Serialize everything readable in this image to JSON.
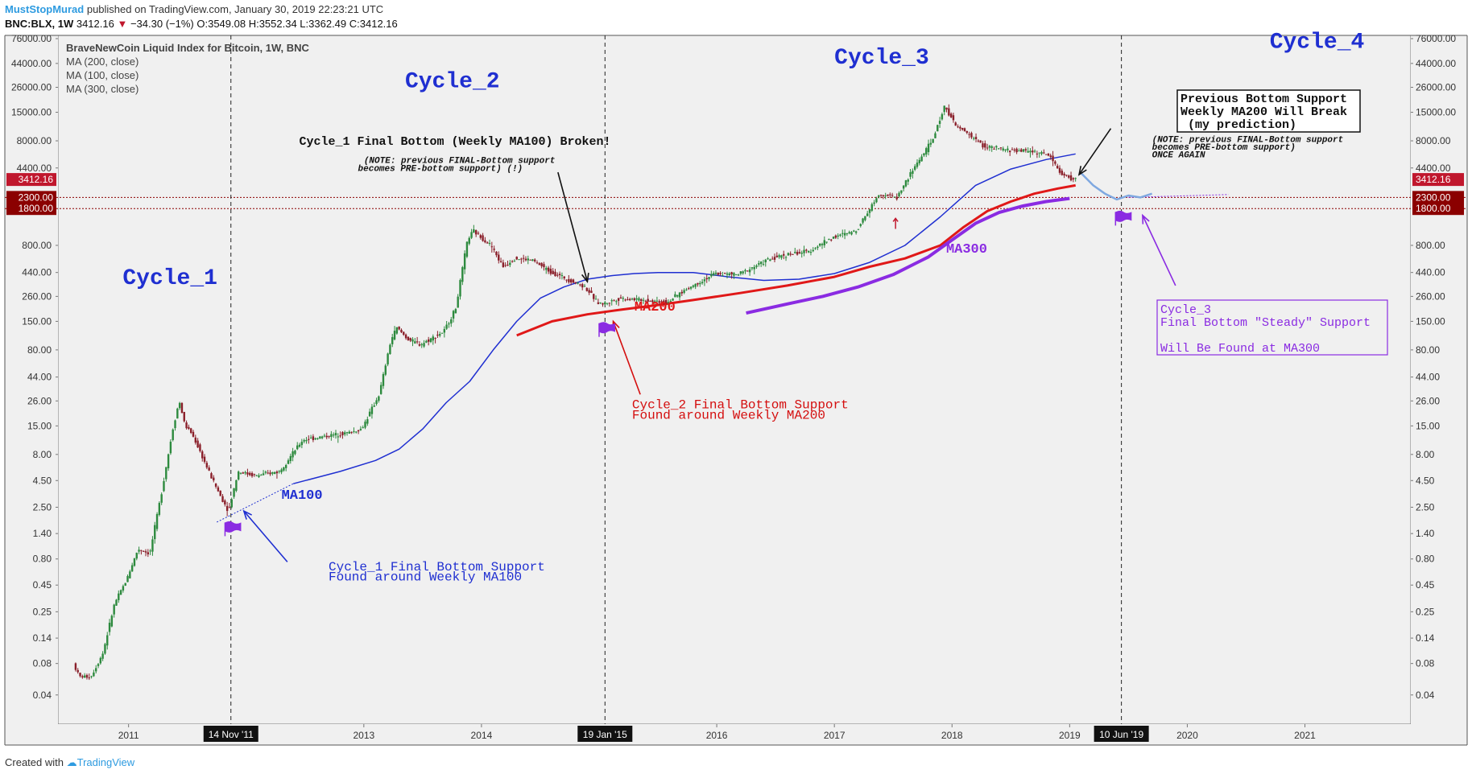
{
  "header": {
    "author": "MustStopMurad",
    "published": "published on TradingView.com, January 30, 2019 22:23:21 UTC",
    "symbol": "BNC:BLX, 1W",
    "last": "3412.16",
    "change": "−34.30 (−1%)",
    "ohlc": "O:3549.08 H:3552.34 L:3362.49 C:3412.16"
  },
  "footer": {
    "created_with": "Created with",
    "brand": "TradingView"
  },
  "colors": {
    "background": "#f0f0f0",
    "candle_up": "#2d8a3e",
    "candle_down": "#8a1f2a",
    "ma100": "#1f2fd1",
    "ma200": "#e01818",
    "ma300": "#8a2be2",
    "projection": "#7fa8e0",
    "cycle_label": "#1f2fd1",
    "red_annotation": "#d40e0e",
    "purple_annotation": "#8a2be2",
    "price_tag": "#c0172d",
    "support_tag": "#8b0000"
  },
  "chart_data": {
    "type": "line",
    "title": "BraveNewCoin Liquid Index for Bitcoin, 1W, BNC",
    "legend": [
      "MA (200, close)",
      "MA (100, close)",
      "MA (300, close)"
    ],
    "y_scale": "log",
    "ylim": [
      0.03,
      76000
    ],
    "xlim": [
      2010.4,
      2021.9
    ],
    "x_ticks": [
      "2011",
      "2013",
      "2014",
      "2016",
      "2017",
      "2018",
      "2019",
      "2020",
      "2021"
    ],
    "x_tick_values": [
      2011,
      2013,
      2014,
      2016,
      2017,
      2018,
      2019,
      2020,
      2021
    ],
    "y_ticks": [
      "76000.00",
      "44000.00",
      "26000.00",
      "15000.00",
      "8000.00",
      "4400.00",
      "2300.00",
      "1800.00",
      "800.00",
      "440.00",
      "260.00",
      "150.00",
      "80.00",
      "44.00",
      "26.00",
      "15.00",
      "8.00",
      "4.50",
      "2.50",
      "1.40",
      "0.80",
      "0.45",
      "0.25",
      "0.14",
      "0.08",
      "0.04"
    ],
    "y_tick_values": [
      76000,
      44000,
      26000,
      15000,
      8000,
      4400,
      2300,
      1800,
      800,
      440,
      260,
      150,
      80,
      44,
      26,
      15,
      8,
      4.5,
      2.5,
      1.4,
      0.8,
      0.45,
      0.25,
      0.14,
      0.08,
      0.04
    ],
    "price_tags": [
      {
        "label": "3412.16",
        "value": 3412.16,
        "kind": "last"
      },
      {
        "label": "2300.00",
        "value": 2300,
        "kind": "support"
      },
      {
        "label": "1800.00",
        "value": 1800,
        "kind": "support"
      }
    ],
    "vlines": [
      {
        "x": 2011.87,
        "label": "14 Nov '11"
      },
      {
        "x": 2015.05,
        "label": "19 Jan '15"
      },
      {
        "x": 2019.44,
        "label": "10 Jun '19"
      }
    ],
    "price_series": {
      "name": "BLX",
      "x": [
        2010.55,
        2010.6,
        2010.7,
        2010.8,
        2010.9,
        2011.0,
        2011.1,
        2011.2,
        2011.3,
        2011.4,
        2011.45,
        2011.5,
        2011.55,
        2011.6,
        2011.7,
        2011.8,
        2011.87,
        2011.95,
        2012.1,
        2012.3,
        2012.5,
        2012.7,
        2012.9,
        2013.0,
        2013.15,
        2013.25,
        2013.3,
        2013.4,
        2013.5,
        2013.7,
        2013.8,
        2013.9,
        2013.95,
        2014.1,
        2014.2,
        2014.3,
        2014.45,
        2014.6,
        2014.75,
        2014.9,
        2015.0,
        2015.05,
        2015.2,
        2015.4,
        2015.6,
        2015.75,
        2015.9,
        2016.0,
        2016.2,
        2016.45,
        2016.6,
        2016.8,
        2017.0,
        2017.2,
        2017.4,
        2017.55,
        2017.7,
        2017.85,
        2017.96,
        2018.05,
        2018.15,
        2018.3,
        2018.5,
        2018.7,
        2018.85,
        2018.95,
        2019.05
      ],
      "values": [
        0.08,
        0.06,
        0.06,
        0.1,
        0.3,
        0.5,
        1.0,
        0.9,
        3.5,
        15,
        26,
        15,
        13,
        10,
        5.5,
        3.2,
        2.3,
        5.5,
        5,
        5.5,
        11,
        12,
        13,
        14,
        30,
        100,
        130,
        100,
        90,
        120,
        200,
        900,
        1100,
        800,
        500,
        600,
        580,
        450,
        380,
        320,
        230,
        220,
        250,
        240,
        230,
        300,
        370,
        430,
        420,
        580,
        650,
        700,
        950,
        1100,
        2500,
        2300,
        4500,
        8000,
        17500,
        11000,
        9500,
        7000,
        6500,
        6400,
        5800,
        3800,
        3412
      ]
    },
    "series": [
      {
        "name": "MA (100, close)",
        "x": [
          2012.4,
          2012.8,
          2013.1,
          2013.3,
          2013.5,
          2013.7,
          2013.9,
          2014.1,
          2014.3,
          2014.5,
          2014.7,
          2014.9,
          2015.1,
          2015.3,
          2015.5,
          2015.8,
          2016.1,
          2016.4,
          2016.7,
          2017.0,
          2017.3,
          2017.6,
          2017.9,
          2018.2,
          2018.5,
          2018.8,
          2019.05
        ],
        "values": [
          4.2,
          5.5,
          7,
          9,
          14,
          25,
          40,
          80,
          150,
          250,
          320,
          380,
          410,
          430,
          440,
          440,
          400,
          370,
          380,
          430,
          550,
          800,
          1500,
          3000,
          4300,
          5300,
          6000
        ]
      },
      {
        "name": "MA (200, close)",
        "x": [
          2014.3,
          2014.6,
          2014.9,
          2015.2,
          2015.5,
          2015.8,
          2016.2,
          2016.6,
          2017.0,
          2017.3,
          2017.6,
          2017.9,
          2018.1,
          2018.3,
          2018.5,
          2018.7,
          2018.9,
          2019.05
        ],
        "values": [
          110,
          150,
          175,
          195,
          215,
          240,
          280,
          330,
          400,
          500,
          600,
          800,
          1200,
          1700,
          2100,
          2500,
          2800,
          3000
        ]
      },
      {
        "name": "MA (300, close)",
        "x": [
          2016.25,
          2016.6,
          2016.9,
          2017.2,
          2017.5,
          2017.8,
          2018.0,
          2018.2,
          2018.4,
          2018.6,
          2018.8,
          2019.0
        ],
        "values": [
          180,
          220,
          260,
          320,
          420,
          620,
          900,
          1300,
          1650,
          1900,
          2100,
          2250
        ]
      },
      {
        "name": "Projection",
        "x": [
          2019.1,
          2019.2,
          2019.3,
          2019.4,
          2019.5,
          2019.6,
          2019.7
        ],
        "values": [
          3900,
          3000,
          2500,
          2200,
          2400,
          2300,
          2500
        ]
      }
    ],
    "annotations": [
      {
        "text": "Cycle_1",
        "x": 2010.95,
        "y": 340,
        "style": "cycle"
      },
      {
        "text": "Cycle_2",
        "x": 2013.35,
        "y": 26000,
        "style": "cycle"
      },
      {
        "text": "Cycle_3",
        "x": 2017.0,
        "y": 44000,
        "style": "cycle"
      },
      {
        "text": "Cycle_4",
        "x": 2020.7,
        "y": 62000,
        "style": "cycle"
      },
      {
        "text": "MA100",
        "x": 2012.3,
        "y": 3.0,
        "style": "ma100"
      },
      {
        "text": "MA200",
        "x": 2015.3,
        "y": 190,
        "style": "ma200"
      },
      {
        "text": "MA300",
        "x": 2017.95,
        "y": 680,
        "style": "ma300"
      },
      {
        "text": "Cycle_1 Final Bottom (Weekly MA100) Broken!",
        "x": 2012.45,
        "y": 7300,
        "style": "black"
      },
      {
        "text": "(NOTE: previous FINAL-Bottom support",
        "x": 2013.0,
        "y": 4900,
        "style": "note"
      },
      {
        "text": "becomes PRE-bottom support) (!)",
        "x": 2012.95,
        "y": 4100,
        "style": "note"
      },
      {
        "text": "Cycle_2 Final Bottom Support",
        "x": 2015.28,
        "y": 22,
        "style": "red"
      },
      {
        "text": "Found around Weekly MA200",
        "x": 2015.28,
        "y": 17.5,
        "style": "red"
      },
      {
        "text": "Cycle_1 Final Bottom Support",
        "x": 2012.7,
        "y": 0.62,
        "style": "blue"
      },
      {
        "text": "Found around Weekly MA100",
        "x": 2012.7,
        "y": 0.5,
        "style": "blue"
      },
      {
        "text": "(NOTE: previous FINAL-Bottom support",
        "x": 2019.7,
        "y": 7800,
        "style": "note"
      },
      {
        "text": "becomes PRE-bottom support)",
        "x": 2019.7,
        "y": 6600,
        "style": "note"
      },
      {
        "text": "ONCE AGAIN",
        "x": 2019.7,
        "y": 5550,
        "style": "note"
      }
    ],
    "prediction_box": [
      "Previous Bottom Support",
      "Weekly MA200 Will Break",
      " (my prediction)"
    ],
    "cycle3_box": [
      "Cycle_3",
      "Final Bottom \"Steady\" Support",
      "",
      "Will Be Found at MA300"
    ]
  }
}
